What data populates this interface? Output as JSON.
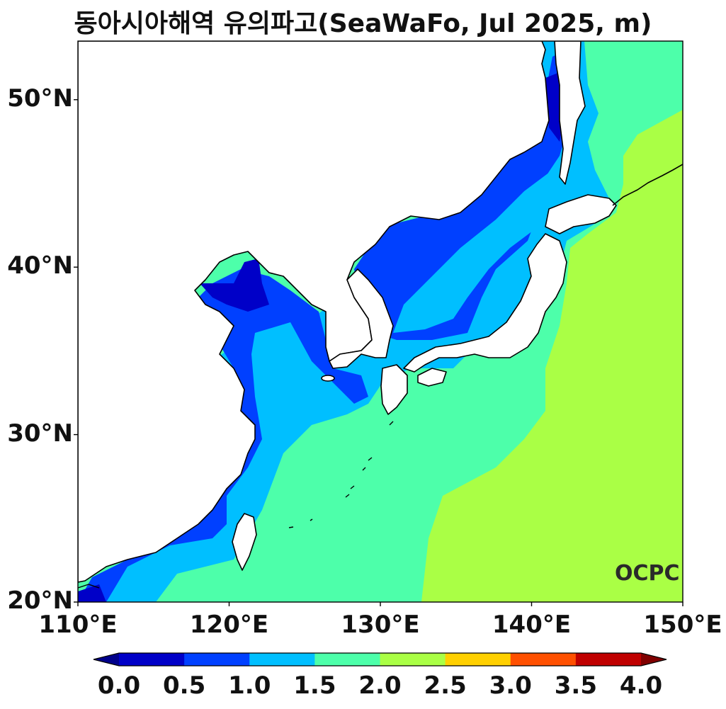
{
  "title": "동아시아해역 유의파고(SeaWaFo, Jul 2025, m)",
  "logo": "OCPC",
  "map": {
    "lon_range": [
      110,
      150
    ],
    "lat_range": [
      20,
      53.5
    ],
    "x_ticks": [
      {
        "value": 110,
        "label": "110°E"
      },
      {
        "value": 120,
        "label": "120°E"
      },
      {
        "value": 130,
        "label": "130°E"
      },
      {
        "value": 140,
        "label": "140°E"
      },
      {
        "value": 150,
        "label": "150°E"
      }
    ],
    "y_ticks": [
      {
        "value": 20,
        "label": "20°N"
      },
      {
        "value": 30,
        "label": "30°N"
      },
      {
        "value": 40,
        "label": "40°N"
      },
      {
        "value": 50,
        "label": "50°N"
      }
    ]
  },
  "colorbar": {
    "levels": [
      0.0,
      0.5,
      1.0,
      1.5,
      2.0,
      2.5,
      3.0,
      3.5,
      4.0
    ],
    "labels": [
      "0.0",
      "0.5",
      "1.0",
      "1.5",
      "2.0",
      "2.5",
      "3.0",
      "3.5",
      "4.0"
    ],
    "colors": [
      "#0000c8",
      "#0040ff",
      "#00bfff",
      "#4dffaa",
      "#aaff45",
      "#ffd000",
      "#ff5000",
      "#c00000"
    ],
    "under_color": "#00008b",
    "over_color": "#800000"
  },
  "colors": {
    "land": "#ffffff",
    "coast": "#000000"
  }
}
